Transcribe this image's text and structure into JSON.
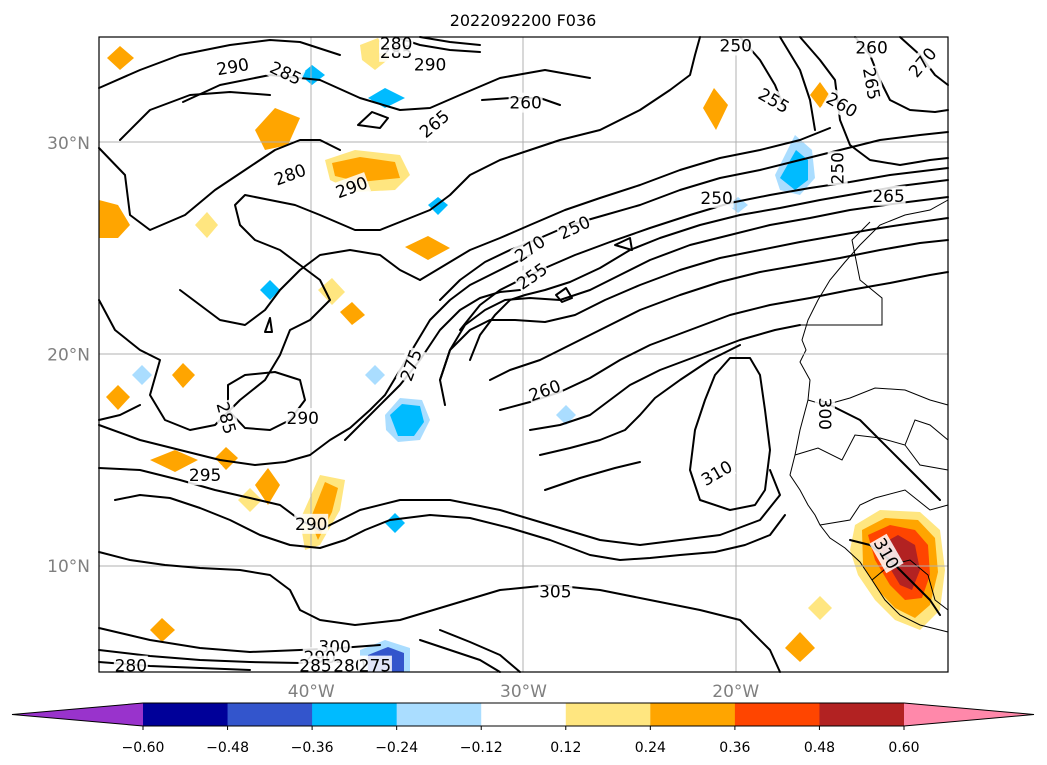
{
  "chart_data": {
    "type": "contour",
    "title": "2022092200 F036",
    "lon_range": [
      -50,
      -10
    ],
    "lat_range": [
      5,
      35
    ],
    "grid": true,
    "x_ticks": [
      {
        "lon": -40,
        "label": "40°W"
      },
      {
        "lon": -30,
        "label": "30°W"
      },
      {
        "lon": -20,
        "label": "20°W"
      }
    ],
    "y_ticks": [
      {
        "lat": 30,
        "label": "30°N"
      },
      {
        "lat": 20,
        "label": "20°N"
      },
      {
        "lat": 10,
        "label": "10°N"
      }
    ],
    "colorbar": {
      "extend": "both",
      "tick_values": [
        -0.6,
        -0.48,
        -0.36,
        -0.24,
        -0.12,
        0.12,
        0.24,
        0.36,
        0.48,
        0.6
      ],
      "tick_labels": [
        "−0.60",
        "−0.48",
        "−0.36",
        "−0.24",
        "−0.12",
        "0.12",
        "0.24",
        "0.36",
        "0.48",
        "0.60"
      ],
      "colors": [
        "#9933cc",
        "#000099",
        "#3355cc",
        "#00bbff",
        "#aaddff",
        "#ffffff",
        "#ffe680",
        "#ffa500",
        "#ff4500",
        "#b22222",
        "#ff88aa"
      ]
    },
    "contour_labels": [
      {
        "text": "290",
        "lon": -43.7,
        "lat": 33.6,
        "angle": -10
      },
      {
        "text": "285",
        "lon": -41.2,
        "lat": 33.3,
        "angle": 25
      },
      {
        "text": "285",
        "lon": -36.0,
        "lat": 34.3,
        "angle": 0
      },
      {
        "text": "280",
        "lon": -36.0,
        "lat": 34.7,
        "angle": 0
      },
      {
        "text": "290",
        "lon": -34.4,
        "lat": 33.7,
        "angle": 0
      },
      {
        "text": "250",
        "lon": -20.0,
        "lat": 34.6,
        "angle": 0
      },
      {
        "text": "260",
        "lon": -13.6,
        "lat": 34.5,
        "angle": 0
      },
      {
        "text": "270",
        "lon": -11.2,
        "lat": 33.8,
        "angle": -50
      },
      {
        "text": "265",
        "lon": -13.6,
        "lat": 32.8,
        "angle": 80
      },
      {
        "text": "260",
        "lon": -29.9,
        "lat": 31.9,
        "angle": 0
      },
      {
        "text": "265",
        "lon": -34.2,
        "lat": 30.9,
        "angle": -40
      },
      {
        "text": "255",
        "lon": -18.2,
        "lat": 32.0,
        "angle": 30
      },
      {
        "text": "260",
        "lon": -15.0,
        "lat": 31.8,
        "angle": 30
      },
      {
        "text": "280",
        "lon": -41.0,
        "lat": 28.5,
        "angle": -20
      },
      {
        "text": "290",
        "lon": -38.1,
        "lat": 27.9,
        "angle": -20
      },
      {
        "text": "250",
        "lon": -15.2,
        "lat": 28.8,
        "angle": -90
      },
      {
        "text": "250",
        "lon": -20.9,
        "lat": 27.4,
        "angle": 0
      },
      {
        "text": "265",
        "lon": -12.8,
        "lat": 27.5,
        "angle": 0
      },
      {
        "text": "250",
        "lon": -27.6,
        "lat": 26.0,
        "angle": -25
      },
      {
        "text": "270",
        "lon": -29.7,
        "lat": 25.0,
        "angle": -35
      },
      {
        "text": "255",
        "lon": -29.6,
        "lat": 23.7,
        "angle": -35
      },
      {
        "text": "275",
        "lon": -35.3,
        "lat": 19.5,
        "angle": -70
      },
      {
        "text": "260",
        "lon": -29.0,
        "lat": 18.3,
        "angle": -20
      },
      {
        "text": "285",
        "lon": -44.0,
        "lat": 17.0,
        "angle": 75
      },
      {
        "text": "290",
        "lon": -40.4,
        "lat": 17.0,
        "angle": 0
      },
      {
        "text": "300",
        "lon": -15.8,
        "lat": 17.2,
        "angle": 90
      },
      {
        "text": "310",
        "lon": -20.9,
        "lat": 14.4,
        "angle": -30
      },
      {
        "text": "295",
        "lon": -45.0,
        "lat": 14.3,
        "angle": 0
      },
      {
        "text": "290",
        "lon": -40.0,
        "lat": 12.0,
        "angle": 0
      },
      {
        "text": "310",
        "lon": -12.9,
        "lat": 10.6,
        "angle": 60
      },
      {
        "text": "305",
        "lon": -28.5,
        "lat": 8.8,
        "angle": 0
      },
      {
        "text": "300",
        "lon": -38.9,
        "lat": 6.2,
        "angle": 0
      },
      {
        "text": "290",
        "lon": -39.6,
        "lat": 5.7,
        "angle": 0
      },
      {
        "text": "280",
        "lon": -48.5,
        "lat": 5.3,
        "angle": 0
      },
      {
        "text": "285",
        "lon": -39.8,
        "lat": 5.3,
        "angle": 0
      },
      {
        "text": "280",
        "lon": -38.2,
        "lat": 5.3,
        "angle": 0
      },
      {
        "text": "275",
        "lon": -37.0,
        "lat": 5.3,
        "angle": 0
      }
    ]
  }
}
